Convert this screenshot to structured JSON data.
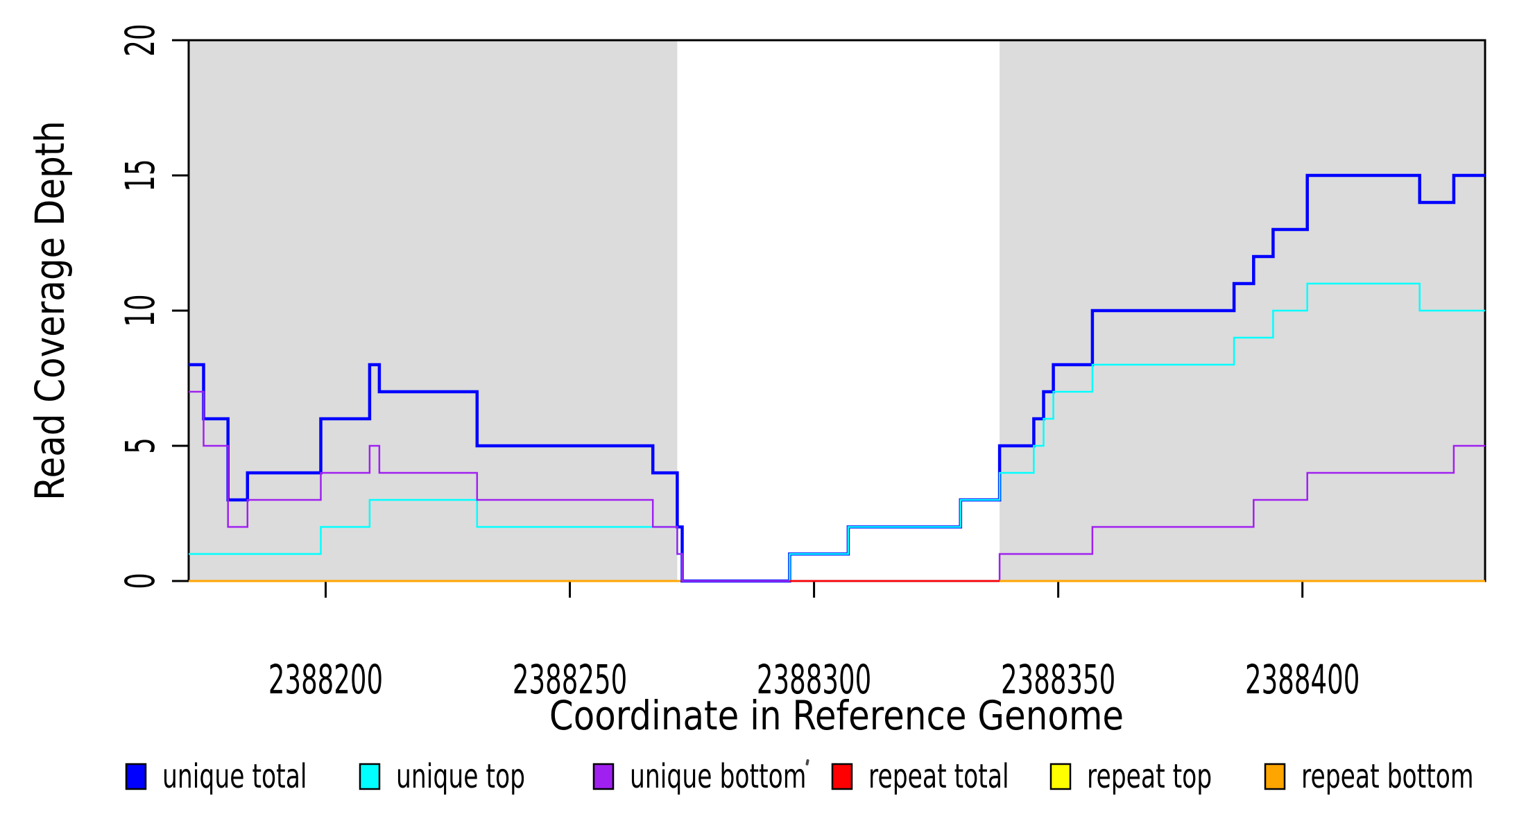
{
  "chart_data": {
    "type": "step-line",
    "title": "",
    "xlabel": "Coordinate in Reference Genome",
    "ylabel": "Read Coverage Depth",
    "xlim": [
      2388171.95,
      2388437.4
    ],
    "ylim": [
      0,
      20
    ],
    "x_ticks": [
      2388200,
      2388250,
      2388300,
      2388350,
      2388400
    ],
    "y_ticks": [
      0,
      5,
      10,
      15,
      20
    ],
    "grid": false,
    "background_color": "#FFFFFF",
    "shaded_region_color": "#DCDCDC",
    "box_color": "#000000",
    "text_color": "#000000",
    "shaded_regions": [
      {
        "from": 2388171.95,
        "to": 2388272,
        "color": "#DCDCDC"
      },
      {
        "from": 2388338,
        "to": 2388437.4,
        "color": "#DCDCDC"
      }
    ],
    "series": [
      {
        "name": "unique total",
        "color": "#0000FF",
        "line_width": 4.5,
        "points": [
          [
            2388172,
            8
          ],
          [
            2388175,
            6
          ],
          [
            2388180,
            3
          ],
          [
            2388184,
            4
          ],
          [
            2388199,
            6
          ],
          [
            2388209,
            8
          ],
          [
            2388211,
            7
          ],
          [
            2388231,
            5
          ],
          [
            2388267,
            4
          ],
          [
            2388272,
            2
          ],
          [
            2388273,
            0
          ],
          [
            2388295,
            1
          ],
          [
            2388307,
            2
          ],
          [
            2388330,
            3
          ],
          [
            2388338,
            5
          ],
          [
            2388345,
            6
          ],
          [
            2388347,
            7
          ],
          [
            2388349,
            8
          ],
          [
            2388357,
            10
          ],
          [
            2388386,
            11
          ],
          [
            2388390,
            12
          ],
          [
            2388394,
            13
          ],
          [
            2388401,
            15
          ],
          [
            2388424,
            14
          ],
          [
            2388431,
            15
          ]
        ]
      },
      {
        "name": "unique top",
        "color": "#00FFFF",
        "line_width": 2.5,
        "points": [
          [
            2388172,
            1
          ],
          [
            2388199,
            2
          ],
          [
            2388209,
            3
          ],
          [
            2388231,
            2
          ],
          [
            2388272,
            1
          ],
          [
            2388273,
            0
          ],
          [
            2388295,
            1
          ],
          [
            2388307,
            2
          ],
          [
            2388330,
            3
          ],
          [
            2388338,
            4
          ],
          [
            2388345,
            5
          ],
          [
            2388347,
            6
          ],
          [
            2388349,
            7
          ],
          [
            2388357,
            8
          ],
          [
            2388386,
            9
          ],
          [
            2388394,
            10
          ],
          [
            2388401,
            11
          ],
          [
            2388424,
            10
          ]
        ]
      },
      {
        "name": "unique bottom",
        "color": "#A020F0",
        "line_width": 2.5,
        "points": [
          [
            2388172,
            7
          ],
          [
            2388175,
            5
          ],
          [
            2388180,
            2
          ],
          [
            2388184,
            3
          ],
          [
            2388199,
            4
          ],
          [
            2388209,
            5
          ],
          [
            2388211,
            4
          ],
          [
            2388231,
            3
          ],
          [
            2388267,
            2
          ],
          [
            2388272,
            1
          ],
          [
            2388273,
            0
          ],
          [
            2388338,
            1
          ],
          [
            2388357,
            2
          ],
          [
            2388390,
            3
          ],
          [
            2388401,
            4
          ],
          [
            2388431,
            5
          ]
        ]
      },
      {
        "name": "repeat total",
        "color": "#FF0000",
        "line_width": 2.5,
        "points": [
          [
            2388172,
            0
          ]
        ]
      },
      {
        "name": "repeat top",
        "color": "#FFFF00",
        "line_width": 2.5,
        "points": [
          [
            2388172,
            0
          ]
        ]
      },
      {
        "name": "repeat bottom",
        "color": "#FFA500",
        "line_width": 3,
        "points": [
          [
            2388172,
            0
          ]
        ]
      }
    ],
    "render_layers": [
      {
        "series": "repeat top"
      },
      {
        "series": "repeat bottom",
        "to": 2388295
      },
      {
        "series": "unique total"
      },
      {
        "series": "unique top"
      },
      {
        "series": "unique bottom"
      },
      {
        "series": "repeat total",
        "from": 2388295,
        "to": 2388338
      },
      {
        "series": "repeat bottom",
        "from": 2388338
      }
    ],
    "legend_position": "bottom",
    "legend": [
      {
        "label": "unique total",
        "color": "#0000FF"
      },
      {
        "label": "unique top",
        "color": "#00FFFF"
      },
      {
        "label": "unique bottom",
        "color": "#A020F0"
      },
      {
        "label": "repeat total",
        "color": "#FF0000"
      },
      {
        "label": "repeat top",
        "color": "#FFFF00"
      },
      {
        "label": "repeat bottom",
        "color": "#FFA500"
      }
    ]
  }
}
